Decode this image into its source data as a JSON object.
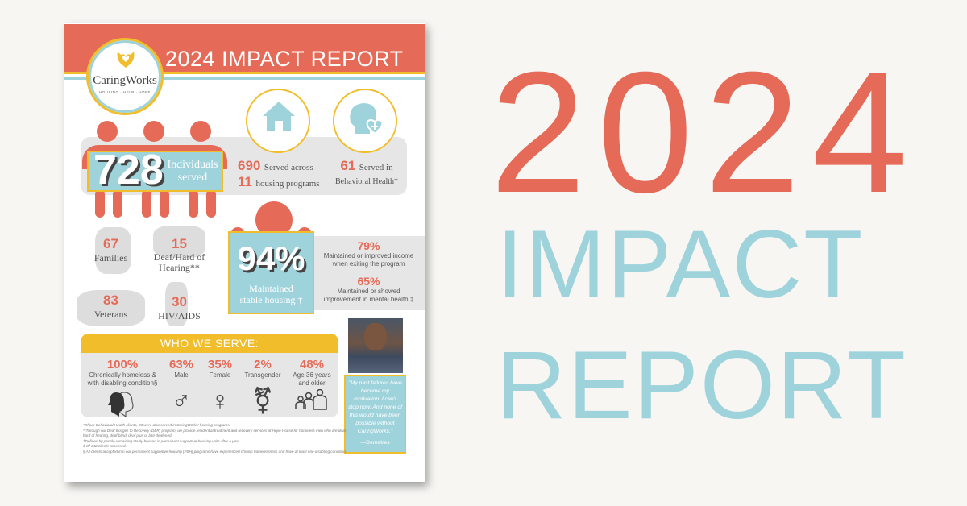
{
  "report": {
    "title": "2024 IMPACT REPORT",
    "logo": {
      "name": "CaringWorks",
      "tagline": "HOUSING · HELP · HOPE"
    },
    "individuals": {
      "value": "728",
      "label_1": "Individuals",
      "label_2": "served"
    },
    "housing": {
      "value_1": "690",
      "text_1": "Served across",
      "value_2": "11",
      "text_2": "housing programs"
    },
    "behavioral": {
      "value": "61",
      "text_1": "Served in",
      "text_2": "Behavioral Health*"
    },
    "groups": [
      {
        "value": "67",
        "label": "Families"
      },
      {
        "value": "15",
        "label": "Deaf/Hard of Hearing**"
      },
      {
        "value": "83",
        "label": "Veterans"
      },
      {
        "value": "30",
        "label": "HIV/AIDS"
      }
    ],
    "stable": {
      "value": "94%",
      "label_1": "Maintained",
      "label_2": "stable housing †"
    },
    "outcomes": [
      {
        "value": "79%",
        "text_1": "Maintained or improved income",
        "text_2": "when exiting the program"
      },
      {
        "value": "65%",
        "text_1": "Maintained or showed",
        "text_2": "improvement in mental health ‡"
      }
    ],
    "who_we_serve": {
      "heading": "WHO WE SERVE:",
      "items": [
        {
          "value": "100%",
          "label": "Chronically homeless & with disabling condition§",
          "icon": "heads-icon"
        },
        {
          "value": "63%",
          "label": "Male",
          "icon": "♂"
        },
        {
          "value": "35%",
          "label": "Female",
          "icon": "♀"
        },
        {
          "value": "2%",
          "label": "Transgender",
          "icon": "⚧"
        },
        {
          "value": "48%",
          "label": "Age 36 years and older",
          "icon": "family-icon"
        }
      ]
    },
    "quote": {
      "text": "\"My past failures have become my motivation. I can't stop now. And none of this would have been possible without CaringWorks.\"",
      "author": "—Demetres"
    },
    "footnotes": [
      "*Of our Behavioral Health clients, 23 were also served in CaringWorks' housing programs.",
      "**Through our Deaf Bridges to Recovery (DBR) program, we provide residential treatment and recovery services at Hope House for homeless men who are deaf, hard of hearing, deaf-blind, deaf plus or late-deafened.",
      "†Defined by people remaining stably housed in permanent supportive housing units after a year.",
      "‡ Of 342 clients assessed.",
      "§ All clients accepted into our permanent supportive housing (PSH) programs have experienced chronic homelessness and have at least one disabling condition."
    ]
  },
  "headline": {
    "line_1": "2024",
    "line_2": "IMPACT",
    "line_3": "REPORT"
  },
  "colors": {
    "coral": "#e56a57",
    "blue": "#9fd3dc",
    "yellow": "#f2bd2a",
    "background": "#f7f6f3"
  }
}
